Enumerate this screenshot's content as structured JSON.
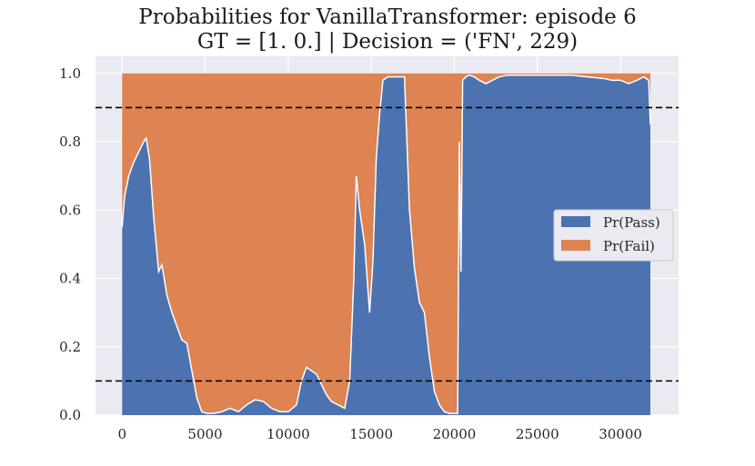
{
  "chart_data": {
    "type": "area",
    "title_line1": "Probabilities for VanillaTransformer: episode 6",
    "title_line2": "GT = [1. 0.] | Decision = ('FN', 229)",
    "xlabel": "",
    "ylabel": "",
    "xlim": [
      -1600,
      33500
    ],
    "ylim": [
      0.0,
      1.05
    ],
    "x_ticks": [
      0,
      5000,
      10000,
      15000,
      20000,
      25000,
      30000
    ],
    "y_ticks": [
      "0.0",
      "0.2",
      "0.4",
      "0.6",
      "0.8",
      "1.0"
    ],
    "grid": true,
    "stacked": true,
    "thresholds": [
      0.9,
      0.1
    ],
    "legend_position": "center-right",
    "series": [
      {
        "name": "Pr(Pass)",
        "color": "#4c72b0"
      },
      {
        "name": "Pr(Fail)",
        "color": "#dd8452"
      }
    ],
    "x": [
      0,
      150,
      400,
      700,
      1000,
      1300,
      1450,
      1650,
      1900,
      2200,
      2400,
      2700,
      3000,
      3300,
      3600,
      3900,
      4200,
      4500,
      4800,
      5100,
      5500,
      6000,
      6500,
      7000,
      7500,
      8000,
      8500,
      9000,
      9500,
      10000,
      10500,
      10800,
      11100,
      11400,
      11700,
      12000,
      12300,
      12600,
      13000,
      13400,
      13700,
      13950,
      14100,
      14300,
      14600,
      14900,
      15100,
      15300,
      15500,
      15700,
      16000,
      16500,
      17000,
      17300,
      17600,
      17900,
      18200,
      18500,
      18800,
      19100,
      19400,
      19700,
      20000,
      20200,
      20300,
      20400,
      20500,
      20700,
      20900,
      21200,
      21500,
      21900,
      22300,
      22700,
      23200,
      24000,
      25000,
      26000,
      27000,
      28000,
      29000,
      29500,
      30000,
      30500,
      31000,
      31400,
      31700,
      31800
    ],
    "pass": [
      0.55,
      0.64,
      0.7,
      0.74,
      0.77,
      0.8,
      0.81,
      0.75,
      0.58,
      0.42,
      0.44,
      0.35,
      0.3,
      0.26,
      0.22,
      0.21,
      0.13,
      0.05,
      0.01,
      0.005,
      0.005,
      0.01,
      0.02,
      0.01,
      0.03,
      0.045,
      0.04,
      0.02,
      0.01,
      0.01,
      0.03,
      0.1,
      0.14,
      0.13,
      0.12,
      0.09,
      0.06,
      0.04,
      0.03,
      0.02,
      0.1,
      0.4,
      0.7,
      0.6,
      0.5,
      0.3,
      0.45,
      0.75,
      0.88,
      0.98,
      0.99,
      0.99,
      0.99,
      0.6,
      0.43,
      0.33,
      0.3,
      0.17,
      0.07,
      0.03,
      0.01,
      0.005,
      0.005,
      0.005,
      0.8,
      0.42,
      0.98,
      0.99,
      0.995,
      0.99,
      0.98,
      0.97,
      0.98,
      0.99,
      0.995,
      0.995,
      0.995,
      0.995,
      0.995,
      0.99,
      0.985,
      0.98,
      0.98,
      0.97,
      0.98,
      0.99,
      0.98,
      0.85
    ]
  }
}
